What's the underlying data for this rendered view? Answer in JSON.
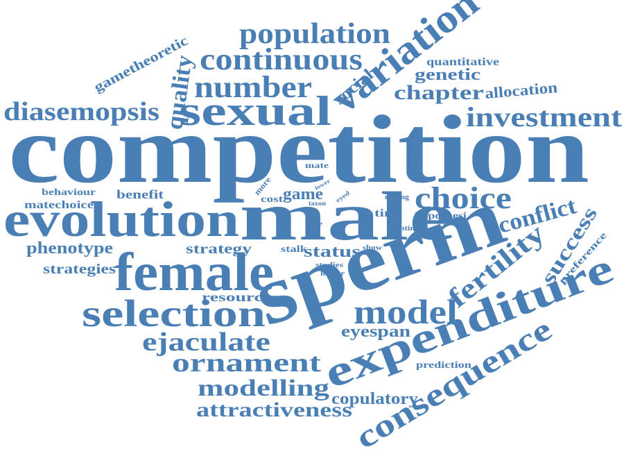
{
  "words": [
    "competition",
    "male",
    "sperm",
    "evolution",
    "female",
    "expenditure",
    "sexual",
    "selection",
    "variation",
    "consequence",
    "population",
    "continuous",
    "number",
    "diasemopsis",
    "investment",
    "model",
    "choice",
    "fertility",
    "ejaculate",
    "ornament",
    "modelling",
    "attractiveness",
    "quality",
    "chapter",
    "conflict",
    "success",
    "genetic",
    "copulatory",
    "eyespan",
    "gametheoretic",
    "phenotype",
    "social",
    "allocation",
    "status",
    "game",
    "strategy",
    "strategies",
    "quantitative",
    "resource",
    "benefit",
    "matechoice",
    "behaviour",
    "hypothesi",
    "prediction",
    "preference",
    "tiny",
    "stalk",
    "cost",
    "more",
    "mate",
    "mating",
    "optimal",
    "studies",
    "higher",
    "show",
    "taxon",
    "eyed",
    "lower",
    "size"
  ]
}
